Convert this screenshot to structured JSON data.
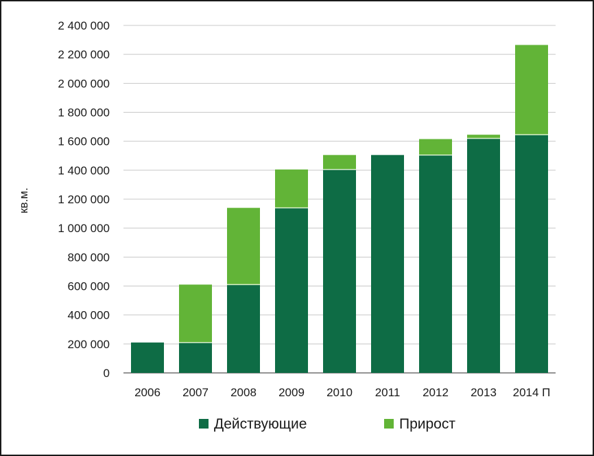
{
  "chart_data": {
    "type": "bar",
    "stacked": true,
    "categories": [
      "2006",
      "2007",
      "2008",
      "2009",
      "2010",
      "2011",
      "2012",
      "2013",
      "2014 П"
    ],
    "series": [
      {
        "name": "Действующие",
        "color": "#0e6c45",
        "values": [
          210000,
          210000,
          610000,
          1140000,
          1405000,
          1505000,
          1505000,
          1620000,
          1645000
        ]
      },
      {
        "name": "Прирост",
        "color": "#62b437",
        "values": [
          0,
          400000,
          530000,
          265000,
          100000,
          0,
          110000,
          25000,
          620000
        ]
      }
    ],
    "ylabel": "кв.м.",
    "ylim": [
      0,
      2400000
    ],
    "yticks": [
      0,
      200000,
      400000,
      600000,
      800000,
      1000000,
      1200000,
      1400000,
      1600000,
      1800000,
      2000000,
      2200000,
      2400000
    ],
    "ytick_labels": [
      "0",
      "200 000",
      "400 000",
      "600 000",
      "800 000",
      "1 000 000",
      "1 200 000",
      "1 400 000",
      "1 600 000",
      "1 800 000",
      "2 000 000",
      "2 200 000",
      "2 400 000"
    ],
    "grid": true,
    "legend_position": "bottom"
  }
}
